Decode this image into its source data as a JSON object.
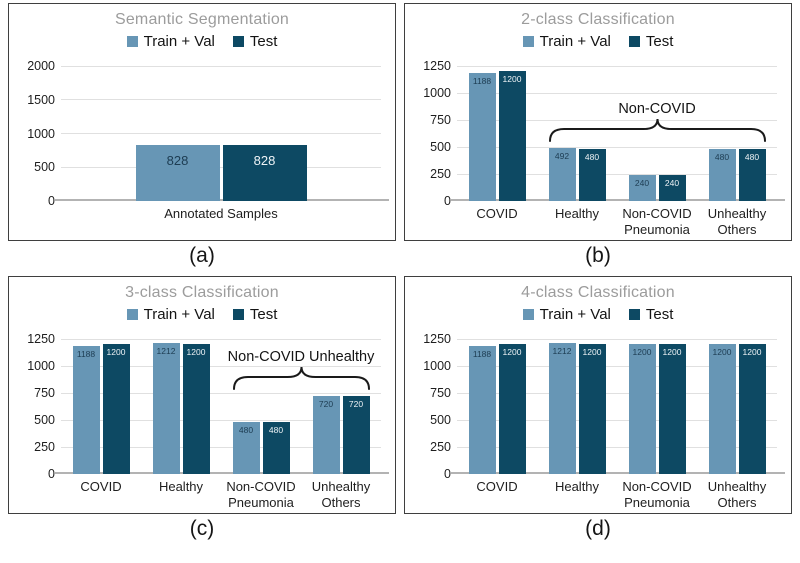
{
  "colors": {
    "train_val": "#6796b5",
    "test": "#0d4963",
    "bar_label_on_light": "#1d3c52",
    "bar_label_on_dark": "#eef3f6",
    "title": "#9c9c9c",
    "grid": "#e0e0e0",
    "axis": "#b3b3b3",
    "text": "#1e1e1e"
  },
  "legend": {
    "train_val_label": "Train + Val",
    "test_label": "Test"
  },
  "chart_data": [
    {
      "type": "bar",
      "caption": "(a)",
      "title": "Semantic Segmentation",
      "categories": [
        "Annotated Samples"
      ],
      "categories_display": [
        [
          "Annotated Samples"
        ]
      ],
      "series": [
        {
          "name": "Train + Val",
          "values": [
            828
          ]
        },
        {
          "name": "Test",
          "values": [
            828
          ]
        }
      ],
      "ylim": [
        0,
        2000
      ],
      "ytick_step": 500,
      "yticks": [
        0,
        500,
        1000,
        1500,
        2000
      ],
      "legend_position": "top",
      "grid": "horizontal",
      "annotation": null
    },
    {
      "type": "bar",
      "caption": "(b)",
      "title": "2-class Classification",
      "categories": [
        "COVID",
        "Healthy",
        "Non-COVID Pneumonia",
        "Unhealthy Others"
      ],
      "categories_display": [
        [
          "COVID"
        ],
        [
          "Healthy"
        ],
        [
          "Non-COVID",
          "Pneumonia"
        ],
        [
          "Unhealthy",
          "Others"
        ]
      ],
      "series": [
        {
          "name": "Train + Val",
          "values": [
            1188,
            492,
            240,
            480
          ]
        },
        {
          "name": "Test",
          "values": [
            1200,
            480,
            240,
            480
          ]
        }
      ],
      "ylim": [
        0,
        1250
      ],
      "ytick_step": 250,
      "yticks": [
        0,
        250,
        500,
        750,
        1000,
        1250
      ],
      "legend_position": "top",
      "grid": "horizontal",
      "annotation": {
        "label": "Non-COVID",
        "from_category": 1,
        "to_category": 3
      }
    },
    {
      "type": "bar",
      "caption": "(c)",
      "title": "3-class Classification",
      "categories": [
        "COVID",
        "Healthy",
        "Non-COVID Pneumonia",
        "Unhealthy Others"
      ],
      "categories_display": [
        [
          "COVID"
        ],
        [
          "Healthy"
        ],
        [
          "Non-COVID",
          "Pneumonia"
        ],
        [
          "Unhealthy",
          "Others"
        ]
      ],
      "series": [
        {
          "name": "Train + Val",
          "values": [
            1188,
            1212,
            480,
            720
          ]
        },
        {
          "name": "Test",
          "values": [
            1200,
            1200,
            480,
            720
          ]
        }
      ],
      "ylim": [
        0,
        1250
      ],
      "ytick_step": 250,
      "yticks": [
        0,
        250,
        500,
        750,
        1000,
        1250
      ],
      "legend_position": "top",
      "grid": "horizontal",
      "annotation": {
        "label": "Non-COVID Unhealthy",
        "from_category": 2,
        "to_category": 3
      }
    },
    {
      "type": "bar",
      "caption": "(d)",
      "title": "4-class Classification",
      "categories": [
        "COVID",
        "Healthy",
        "Non-COVID Pneumonia",
        "Unhealthy Others"
      ],
      "categories_display": [
        [
          "COVID"
        ],
        [
          "Healthy"
        ],
        [
          "Non-COVID",
          "Pneumonia"
        ],
        [
          "Unhealthy",
          "Others"
        ]
      ],
      "series": [
        {
          "name": "Train + Val",
          "values": [
            1188,
            1212,
            1200,
            1200
          ]
        },
        {
          "name": "Test",
          "values": [
            1200,
            1200,
            1200,
            1200
          ]
        }
      ],
      "ylim": [
        0,
        1250
      ],
      "ytick_step": 250,
      "yticks": [
        0,
        250,
        500,
        750,
        1000,
        1250
      ],
      "legend_position": "top",
      "grid": "horizontal",
      "annotation": null
    }
  ]
}
